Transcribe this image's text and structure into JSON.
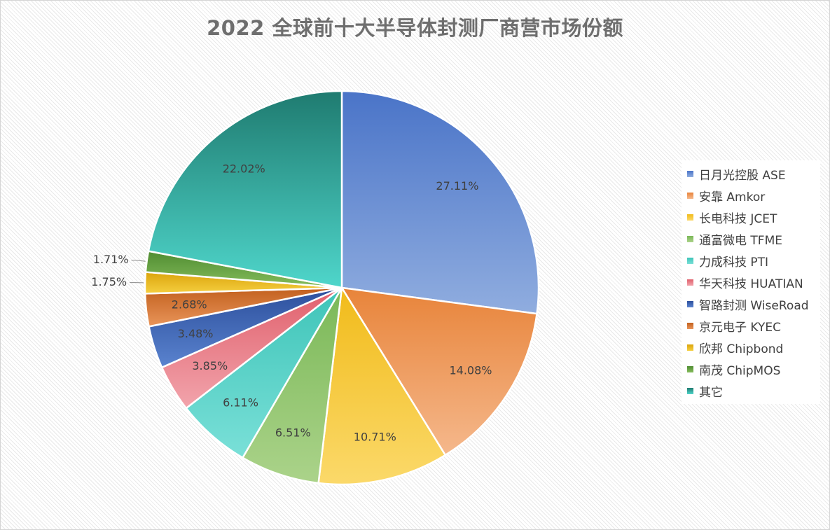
{
  "chart_data": {
    "type": "pie",
    "title": "2022 全球前十大半导体封测厂商营市场份额",
    "categories": [
      "日月光控股 ASE",
      "安靠 Amkor",
      "长电科技 JCET",
      "通富微电 TFME",
      "力成科技 PTI",
      "华天科技 HUATIAN",
      "智路封测 WiseRoad",
      "京元电子 KYEC",
      "欣邦 Chipbond",
      "南茂 ChipMOS",
      "其它"
    ],
    "values": [
      27.11,
      14.08,
      10.71,
      6.51,
      6.11,
      3.85,
      3.48,
      2.68,
      1.75,
      1.71,
      22.02
    ],
    "data_labels": [
      "27.11%",
      "14.08%",
      "10.71%",
      "6.51%",
      "6.11%",
      "3.85%",
      "3.48%",
      "2.68%",
      "1.75%",
      "1.71%",
      "22.02%"
    ],
    "colors": [
      [
        "#90addf",
        "#4a74c8"
      ],
      [
        "#f5b88c",
        "#e8843a"
      ],
      [
        "#fbd96a",
        "#f1bb1a"
      ],
      [
        "#abd38a",
        "#7ab857"
      ],
      [
        "#7ae0d8",
        "#3ec4b8"
      ],
      [
        "#f2a4ac",
        "#e0606c"
      ],
      [
        "#5a83cf",
        "#2c4f9c"
      ],
      [
        "#e9955a",
        "#c2601e"
      ],
      [
        "#f5cf40",
        "#dba40c"
      ],
      [
        "#86bd5c",
        "#4f8c31"
      ],
      [
        "#4fd6cb",
        "#1f7b70"
      ]
    ],
    "legend_position": "right",
    "grid": false
  }
}
